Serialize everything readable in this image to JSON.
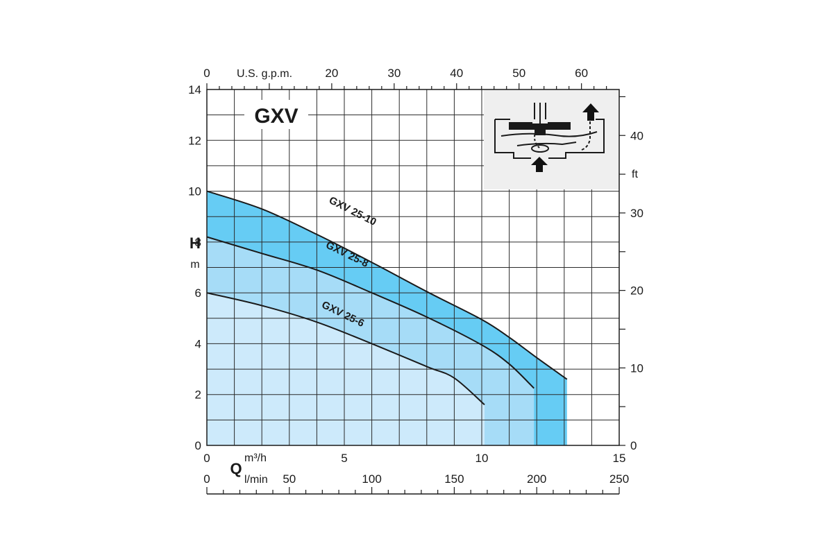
{
  "chart_data": {
    "type": "line",
    "title": "GXV",
    "x": {
      "symbol": "Q",
      "unit_primary": "m³/h",
      "range": [
        0,
        15
      ],
      "ticks": [
        0,
        5,
        10,
        15
      ],
      "secondary_unit": "l/min",
      "secondary_ticks": [
        0,
        50,
        100,
        150,
        200,
        250
      ],
      "top_unit": "U.S. g.p.m.",
      "top_ticks": [
        0,
        20,
        30,
        40,
        50,
        60
      ]
    },
    "y": {
      "symbol": "H",
      "unit": "m",
      "range": [
        0,
        14
      ],
      "ticks": [
        0,
        2,
        4,
        6,
        8,
        10,
        12,
        14
      ],
      "secondary_unit": "ft",
      "secondary_ticks": [
        0,
        10,
        20,
        30,
        40
      ]
    },
    "series": [
      {
        "name": "GXV 25-10",
        "color": "#66ccf4",
        "points": [
          [
            0,
            10.0
          ],
          [
            2,
            9.3
          ],
          [
            4,
            8.3
          ],
          [
            6,
            7.2
          ],
          [
            8,
            6.05
          ],
          [
            10,
            4.95
          ],
          [
            11,
            4.25
          ],
          [
            12,
            3.45
          ],
          [
            13.1,
            2.6
          ]
        ]
      },
      {
        "name": "GXV 25-8",
        "color": "#a6dcf7",
        "points": [
          [
            0,
            8.2
          ],
          [
            2,
            7.55
          ],
          [
            4,
            6.9
          ],
          [
            6,
            6.0
          ],
          [
            8,
            5.05
          ],
          [
            10,
            3.95
          ],
          [
            11,
            3.2
          ],
          [
            11.9,
            2.25
          ]
        ]
      },
      {
        "name": "GXV 25-6",
        "color": "#cdeafb",
        "points": [
          [
            0,
            6.0
          ],
          [
            2,
            5.5
          ],
          [
            4,
            4.85
          ],
          [
            6,
            4.0
          ],
          [
            8,
            3.1
          ],
          [
            9,
            2.65
          ],
          [
            10.1,
            1.6
          ]
        ]
      }
    ]
  }
}
